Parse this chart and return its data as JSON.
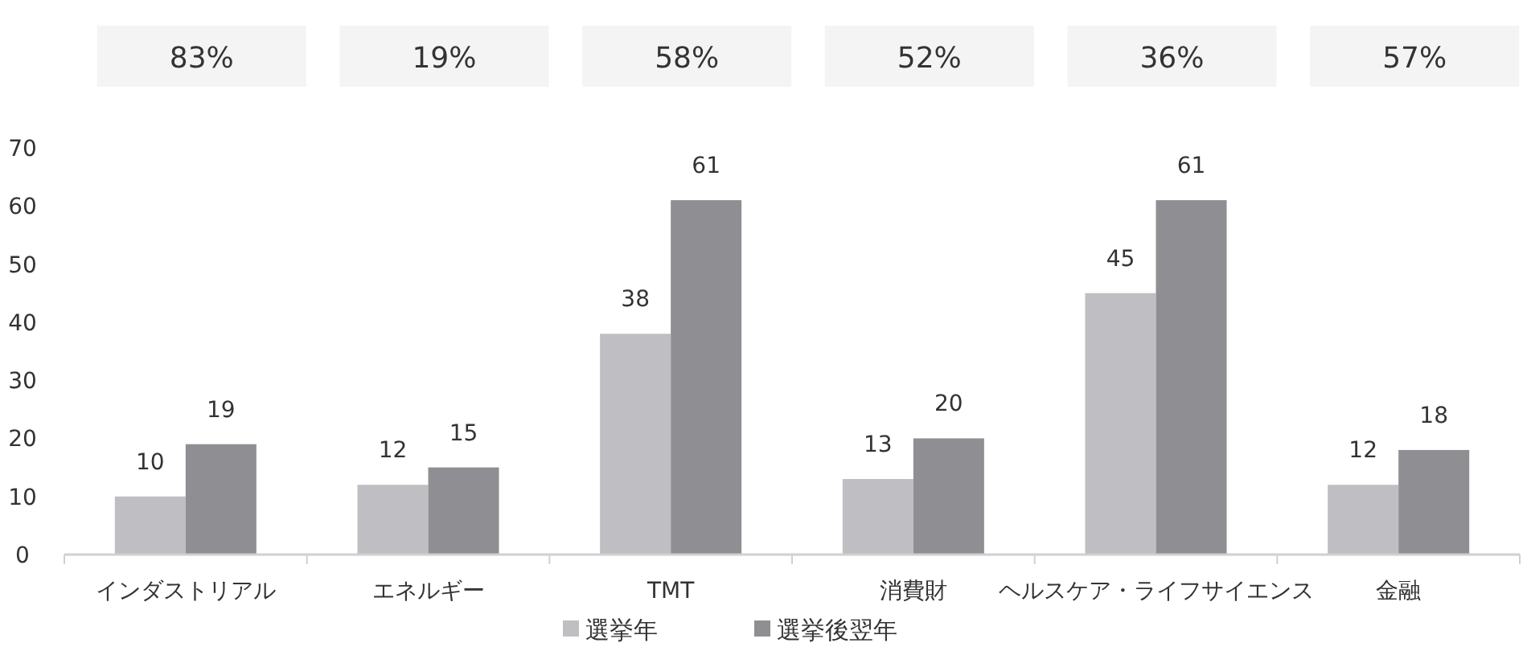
{
  "chart_data": {
    "type": "bar",
    "categories": [
      "インダストリアル",
      "エネルギー",
      "TMT",
      "消費財",
      "ヘルスケア・ライフサイエンス",
      "金融"
    ],
    "series": [
      {
        "name": "選挙年",
        "color": "#bfbfc3",
        "values": [
          10,
          12,
          38,
          13,
          45,
          12
        ]
      },
      {
        "name": "選挙後翌年",
        "color": "#8f8f93",
        "values": [
          19,
          15,
          61,
          20,
          61,
          18
        ]
      }
    ],
    "ylim": [
      0,
      70
    ],
    "yticks": [
      0,
      10,
      20,
      30,
      40,
      50,
      60,
      70
    ],
    "data_labels": true,
    "legend": "bottom",
    "grid": false,
    "annotations": [
      "83%",
      "19%",
      "58%",
      "52%",
      "36%",
      "57%"
    ]
  }
}
